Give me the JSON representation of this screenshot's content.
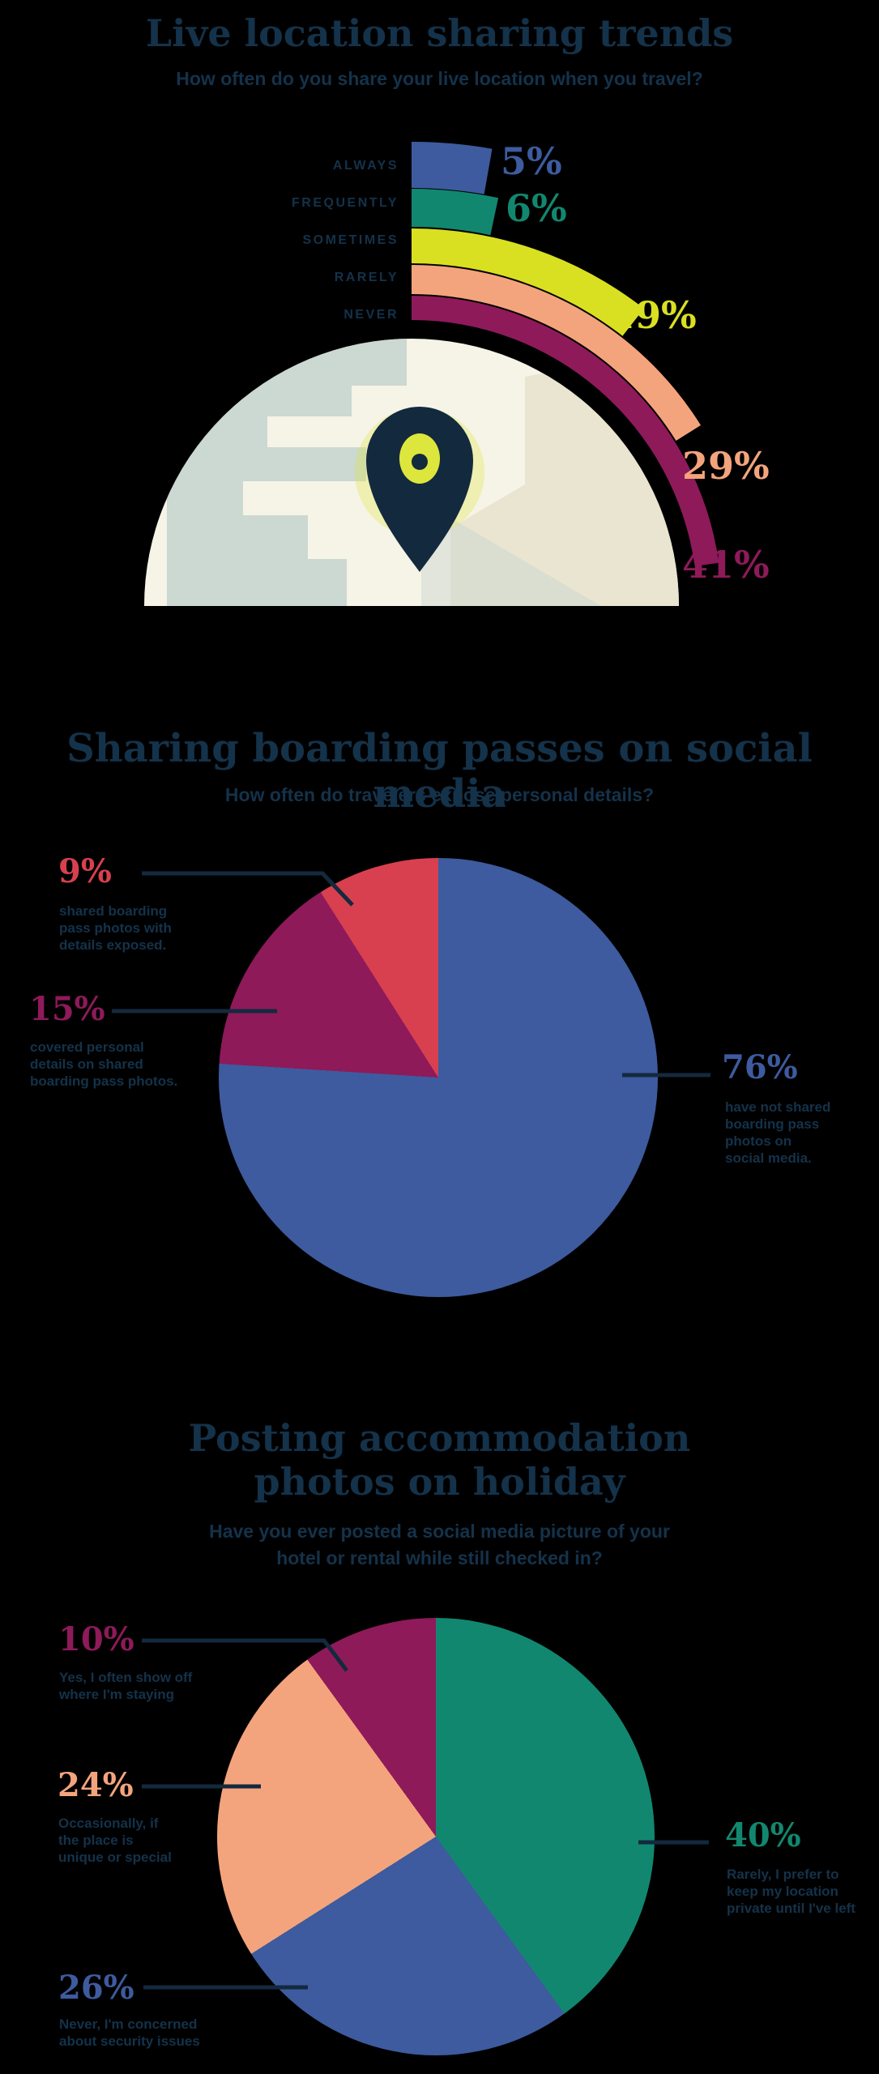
{
  "page": {
    "background": "#000000",
    "text_color": "#14324a",
    "accent_navy": "#13293e"
  },
  "chart_data": [
    {
      "type": "bar",
      "variant": "radial-semicircle-arcs",
      "title": "Live location sharing trends",
      "subtitle": "How often do you share your live location when you travel?",
      "categories": [
        "ALWAYS",
        "FREQUENTLY",
        "SOMETIMES",
        "RARELY",
        "NEVER"
      ],
      "values": [
        5,
        6,
        19,
        29,
        41
      ],
      "unit": "%",
      "value_labels": [
        "5%",
        "6%",
        "19%",
        "29%",
        "41%"
      ],
      "colors": [
        "#3d5b9e",
        "#12876f",
        "#d9e021",
        "#f4a47c",
        "#8e1a5a"
      ],
      "layout_hint": "concentric arcs start at 12 o'clock and sweep clockwise about 2 degrees per percent; half-globe with glowing location pin sits beneath the arcs"
    },
    {
      "type": "pie",
      "title": "Sharing boarding passes on social media",
      "subtitle": "How often do travelers expose personal details?",
      "slices": [
        {
          "value": 9,
          "label": "9%",
          "color": "#d8404f",
          "description": "shared boarding\npass photos with\ndetails exposed."
        },
        {
          "value": 15,
          "label": "15%",
          "color": "#8e1a5a",
          "description": "covered personal\ndetails on shared\nboarding pass photos."
        },
        {
          "value": 76,
          "label": "76%",
          "color": "#3d5b9e",
          "description": "have not shared\nboarding pass\nphotos on\nsocial media."
        }
      ],
      "draw_order_from_top": [
        2,
        1,
        0
      ],
      "start_angle": "12 o'clock",
      "direction": "clockwise",
      "legend_position": "left labels for 9% and 15%, right label for 76%, navy leader lines"
    },
    {
      "type": "pie",
      "title": "Posting accommodation\nphotos on holiday",
      "subtitle": "Have you ever posted a social media picture of your\nhotel or rental while still checked in?",
      "slices": [
        {
          "value": 10,
          "label": "10%",
          "color": "#8e1a5a",
          "description": "Yes, I often show off\nwhere I'm staying"
        },
        {
          "value": 24,
          "label": "24%",
          "color": "#f4a47c",
          "description": "Occasionally, if\nthe place is\nunique or special"
        },
        {
          "value": 26,
          "label": "26%",
          "color": "#3d5b9e",
          "description": "Never, I'm concerned\nabout security issues"
        },
        {
          "value": 40,
          "label": "40%",
          "color": "#12876f",
          "description": "Rarely, I prefer to\nkeep my location\nprivate until I've left"
        }
      ],
      "draw_order_from_top": [
        3,
        2,
        1,
        0
      ],
      "start_angle": "12 o'clock",
      "direction": "clockwise",
      "legend_position": "left labels for 10%, 24%, 26%; right label for 40%, navy leader lines"
    }
  ],
  "globe": {
    "base_color": "#f6f3e7",
    "continent_colors": [
      "#ccd8d2",
      "#e9e5d0"
    ],
    "pin_color": "#13293e",
    "pin_glow_color": "#dce63a"
  }
}
